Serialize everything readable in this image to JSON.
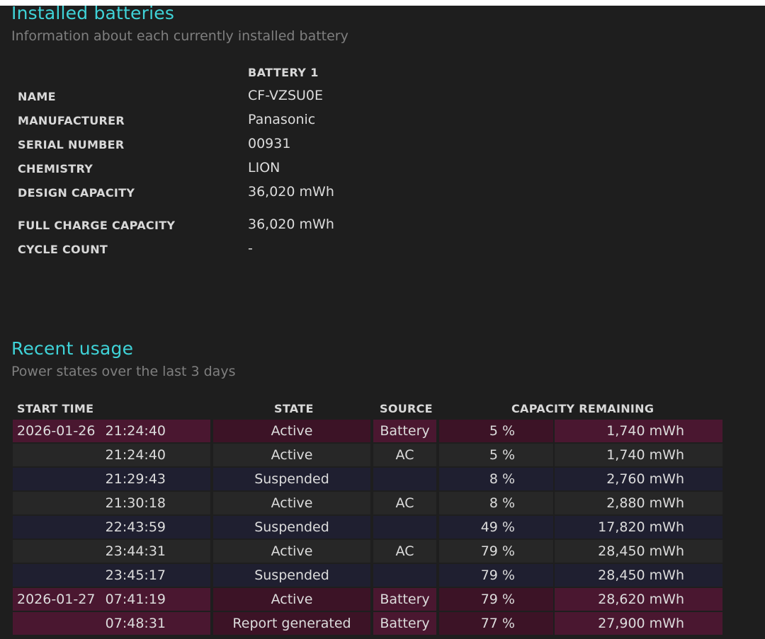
{
  "installed": {
    "title": "Installed batteries",
    "subtitle": "Information about each currently installed battery",
    "battery_header": "BATTERY 1",
    "rows": [
      {
        "label": "NAME",
        "value": "CF-VZSU0E"
      },
      {
        "label": "MANUFACTURER",
        "value": "Panasonic"
      },
      {
        "label": "SERIAL NUMBER",
        "value": "00931"
      },
      {
        "label": "CHEMISTRY",
        "value": "LION"
      },
      {
        "label": "DESIGN CAPACITY",
        "value": "36,020 mWh"
      },
      {
        "label": "FULL CHARGE CAPACITY",
        "value": "36,020 mWh"
      },
      {
        "label": "CYCLE COUNT",
        "value": "-"
      }
    ]
  },
  "recent": {
    "title": "Recent usage",
    "subtitle": "Power states over the last 3 days",
    "headers": {
      "start_time": "START TIME",
      "state": "STATE",
      "source": "SOURCE",
      "capacity": "CAPACITY REMAINING"
    },
    "rows": [
      {
        "date": "2026-01-26",
        "time": "21:24:40",
        "state": "Active",
        "source": "Battery",
        "pct": "5 %",
        "mwh": "1,740 mWh"
      },
      {
        "date": "",
        "time": "21:24:40",
        "state": "Active",
        "source": "AC",
        "pct": "5 %",
        "mwh": "1,740 mWh"
      },
      {
        "date": "",
        "time": "21:29:43",
        "state": "Suspended",
        "source": "",
        "pct": "8 %",
        "mwh": "2,760 mWh"
      },
      {
        "date": "",
        "time": "21:30:18",
        "state": "Active",
        "source": "AC",
        "pct": "8 %",
        "mwh": "2,880 mWh"
      },
      {
        "date": "",
        "time": "22:43:59",
        "state": "Suspended",
        "source": "",
        "pct": "49 %",
        "mwh": "17,820 mWh"
      },
      {
        "date": "",
        "time": "23:44:31",
        "state": "Active",
        "source": "AC",
        "pct": "79 %",
        "mwh": "28,450 mWh"
      },
      {
        "date": "",
        "time": "23:45:17",
        "state": "Suspended",
        "source": "",
        "pct": "79 %",
        "mwh": "28,450 mWh"
      },
      {
        "date": "2026-01-27",
        "time": "07:41:19",
        "state": "Active",
        "source": "Battery",
        "pct": "79 %",
        "mwh": "28,620 mWh"
      },
      {
        "date": "",
        "time": "07:48:31",
        "state": "Report generated",
        "source": "Battery",
        "pct": "77 %",
        "mwh": "27,900 mWh"
      }
    ]
  },
  "colors": {
    "heading": "#3fd3d8",
    "battery_row": "#4a1730",
    "suspended_row": "#1f1f30",
    "ac_row": "#272727"
  }
}
